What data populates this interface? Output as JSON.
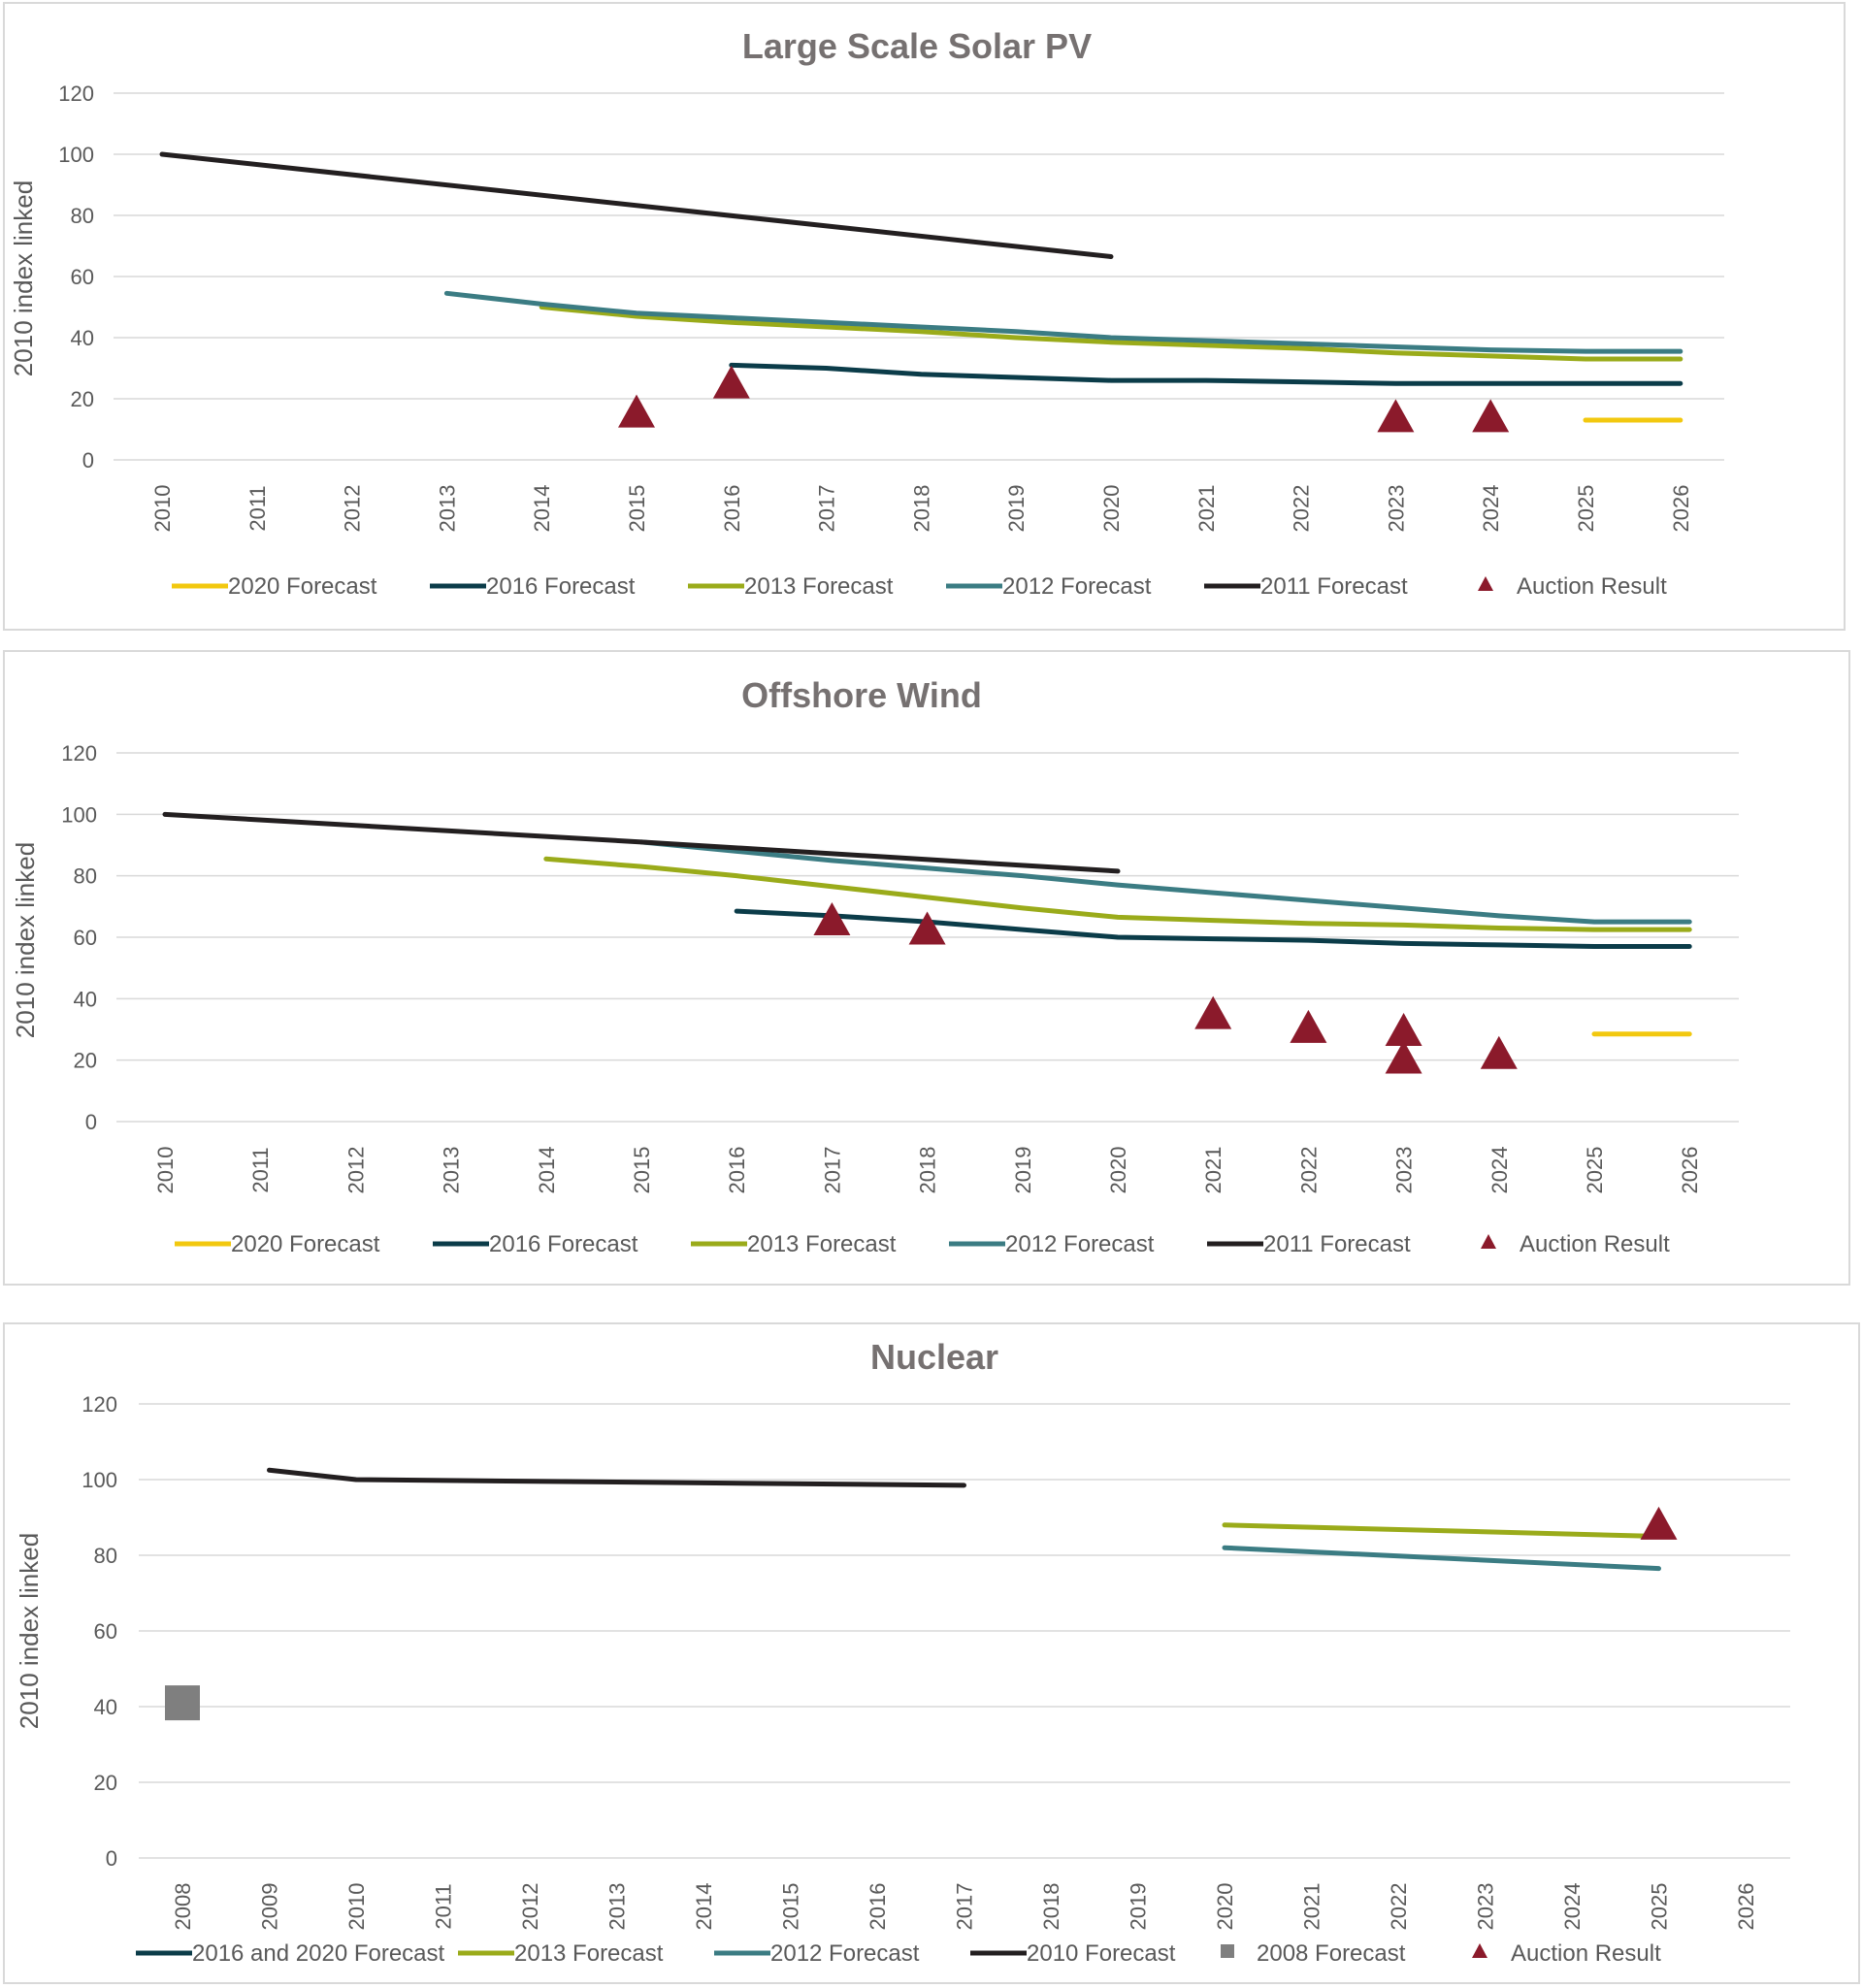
{
  "chart_data": [
    {
      "type": "line",
      "title": "Large Scale Solar PV",
      "ylabel": "2010 index linked",
      "xlabel": "",
      "ylim": [
        0,
        120
      ],
      "yticks": [
        0,
        20,
        40,
        60,
        80,
        100,
        120
      ],
      "categories": [
        "2010",
        "2011",
        "2012",
        "2013",
        "2014",
        "2015",
        "2016",
        "2017",
        "2018",
        "2019",
        "2020",
        "2021",
        "2022",
        "2023",
        "2024",
        "2025",
        "2026"
      ],
      "grid": true,
      "legend_position": "bottom",
      "series": [
        {
          "name": "2020 Forecast",
          "color": "#f2c80f",
          "kind": "line",
          "points": [
            [
              "2025",
              13
            ],
            [
              "2026",
              13
            ]
          ]
        },
        {
          "name": "2016 Forecast",
          "color": "#0b3c49",
          "kind": "line",
          "points": [
            [
              "2016",
              31
            ],
            [
              "2017",
              30
            ],
            [
              "2018",
              28
            ],
            [
              "2019",
              27
            ],
            [
              "2020",
              26
            ],
            [
              "2021",
              26
            ],
            [
              "2022",
              25.5
            ],
            [
              "2023",
              25
            ],
            [
              "2024",
              25
            ],
            [
              "2025",
              25
            ],
            [
              "2026",
              25
            ]
          ]
        },
        {
          "name": "2013 Forecast",
          "color": "#9aab1a",
          "kind": "line",
          "points": [
            [
              "2014",
              50
            ],
            [
              "2015",
              47
            ],
            [
              "2016",
              45
            ],
            [
              "2017",
              43.5
            ],
            [
              "2018",
              42
            ],
            [
              "2019",
              40
            ],
            [
              "2020",
              38.5
            ],
            [
              "2021",
              37.5
            ],
            [
              "2022",
              36.5
            ],
            [
              "2023",
              35
            ],
            [
              "2024",
              34
            ],
            [
              "2025",
              33
            ],
            [
              "2026",
              33
            ]
          ]
        },
        {
          "name": "2012 Forecast",
          "color": "#3b7c83",
          "kind": "line",
          "points": [
            [
              "2013",
              54.5
            ],
            [
              "2014",
              51
            ],
            [
              "2015",
              48
            ],
            [
              "2016",
              46.5
            ],
            [
              "2017",
              45
            ],
            [
              "2018",
              43.5
            ],
            [
              "2019",
              42
            ],
            [
              "2020",
              40
            ],
            [
              "2021",
              39
            ],
            [
              "2022",
              38
            ],
            [
              "2023",
              37
            ],
            [
              "2024",
              36
            ],
            [
              "2025",
              35.5
            ],
            [
              "2026",
              35.5
            ]
          ]
        },
        {
          "name": "2011 Forecast",
          "color": "#231f20",
          "kind": "line",
          "points": [
            [
              "2010",
              100
            ],
            [
              "2020",
              66.5
            ]
          ]
        },
        {
          "name": "Auction Result",
          "color": "#8b1a2b",
          "kind": "triangle",
          "points": [
            [
              "2015",
              16
            ],
            [
              "2016",
              25.5
            ],
            [
              "2023",
              14.5
            ],
            [
              "2024",
              14.5
            ]
          ]
        }
      ]
    },
    {
      "type": "line",
      "title": "Offshore Wind",
      "ylabel": "2010 index linked",
      "xlabel": "",
      "ylim": [
        0,
        120
      ],
      "yticks": [
        0,
        20,
        40,
        60,
        80,
        100,
        120
      ],
      "categories": [
        "2010",
        "2011",
        "2012",
        "2013",
        "2014",
        "2015",
        "2016",
        "2017",
        "2018",
        "2019",
        "2020",
        "2021",
        "2022",
        "2023",
        "2024",
        "2025",
        "2026"
      ],
      "grid": true,
      "legend_position": "bottom",
      "series": [
        {
          "name": "2020 Forecast",
          "color": "#f2c80f",
          "kind": "line",
          "points": [
            [
              "2025",
              28.5
            ],
            [
              "2026",
              28.5
            ]
          ]
        },
        {
          "name": "2016 Forecast",
          "color": "#0b3c49",
          "kind": "line",
          "points": [
            [
              "2016",
              68.5
            ],
            [
              "2017",
              67
            ],
            [
              "2018",
              65
            ],
            [
              "2019",
              62.5
            ],
            [
              "2020",
              60
            ],
            [
              "2021",
              59.5
            ],
            [
              "2022",
              59
            ],
            [
              "2023",
              58
            ],
            [
              "2024",
              57.5
            ],
            [
              "2025",
              57
            ],
            [
              "2026",
              57
            ]
          ]
        },
        {
          "name": "2013 Forecast",
          "color": "#9aab1a",
          "kind": "line",
          "points": [
            [
              "2014",
              85.5
            ],
            [
              "2015",
              83
            ],
            [
              "2016",
              80
            ],
            [
              "2017",
              76.5
            ],
            [
              "2018",
              73
            ],
            [
              "2019",
              69.5
            ],
            [
              "2020",
              66.5
            ],
            [
              "2021",
              65.5
            ],
            [
              "2022",
              64.5
            ],
            [
              "2023",
              64
            ],
            [
              "2024",
              63
            ],
            [
              "2025",
              62.5
            ],
            [
              "2026",
              62.5
            ]
          ]
        },
        {
          "name": "2012 Forecast",
          "color": "#3b7c83",
          "kind": "line",
          "points": [
            [
              "2015",
              91
            ],
            [
              "2016",
              88
            ],
            [
              "2017",
              85
            ],
            [
              "2018",
              82.5
            ],
            [
              "2019",
              80
            ],
            [
              "2020",
              77
            ],
            [
              "2021",
              74.5
            ],
            [
              "2022",
              72
            ],
            [
              "2023",
              69.5
            ],
            [
              "2024",
              67
            ],
            [
              "2025",
              65
            ],
            [
              "2026",
              65
            ]
          ]
        },
        {
          "name": "2011 Forecast",
          "color": "#231f20",
          "kind": "line",
          "points": [
            [
              "2010",
              100
            ],
            [
              "2015",
              91
            ],
            [
              "2020",
              81.5
            ]
          ]
        },
        {
          "name": "Auction Result",
          "color": "#8b1a2b",
          "kind": "triangle",
          "points": [
            [
              "2017",
              66
            ],
            [
              "2018",
              63
            ],
            [
              "2021",
              35.5
            ],
            [
              "2022",
              31
            ],
            [
              "2023",
              30
            ],
            [
              "2023",
              21
            ],
            [
              "2024",
              22.5
            ]
          ]
        }
      ]
    },
    {
      "type": "line",
      "title": "Nuclear",
      "ylabel": "2010 index linked",
      "xlabel": "",
      "ylim": [
        0,
        120
      ],
      "yticks": [
        0,
        20,
        40,
        60,
        80,
        100,
        120
      ],
      "categories": [
        "2008",
        "2009",
        "2010",
        "2011",
        "2012",
        "2013",
        "2014",
        "2015",
        "2016",
        "2017",
        "2018",
        "2019",
        "2020",
        "2021",
        "2022",
        "2023",
        "2024",
        "2025",
        "2026"
      ],
      "grid": true,
      "legend_position": "bottom",
      "series": [
        {
          "name": "2016 and 2020 Forecast",
          "color": "#0b3c49",
          "kind": "line",
          "points": []
        },
        {
          "name": "2013 Forecast",
          "color": "#9aab1a",
          "kind": "line",
          "points": [
            [
              "2020",
              88
            ],
            [
              "2025",
              85
            ]
          ]
        },
        {
          "name": "2012 Forecast",
          "color": "#3b7c83",
          "kind": "line",
          "points": [
            [
              "2020",
              82
            ],
            [
              "2025",
              76.5
            ]
          ]
        },
        {
          "name": "2010 Forecast",
          "color": "#231f20",
          "kind": "line",
          "points": [
            [
              "2009",
              102.5
            ],
            [
              "2010",
              100
            ],
            [
              "2017",
              98.5
            ]
          ]
        },
        {
          "name": "2008 Forecast",
          "color": "#7f7f7f",
          "kind": "square",
          "points": [
            [
              "2008",
              41
            ]
          ]
        },
        {
          "name": "Auction Result",
          "color": "#8b1a2b",
          "kind": "triangle",
          "points": [
            [
              "2025",
              88.5
            ]
          ]
        }
      ]
    }
  ]
}
